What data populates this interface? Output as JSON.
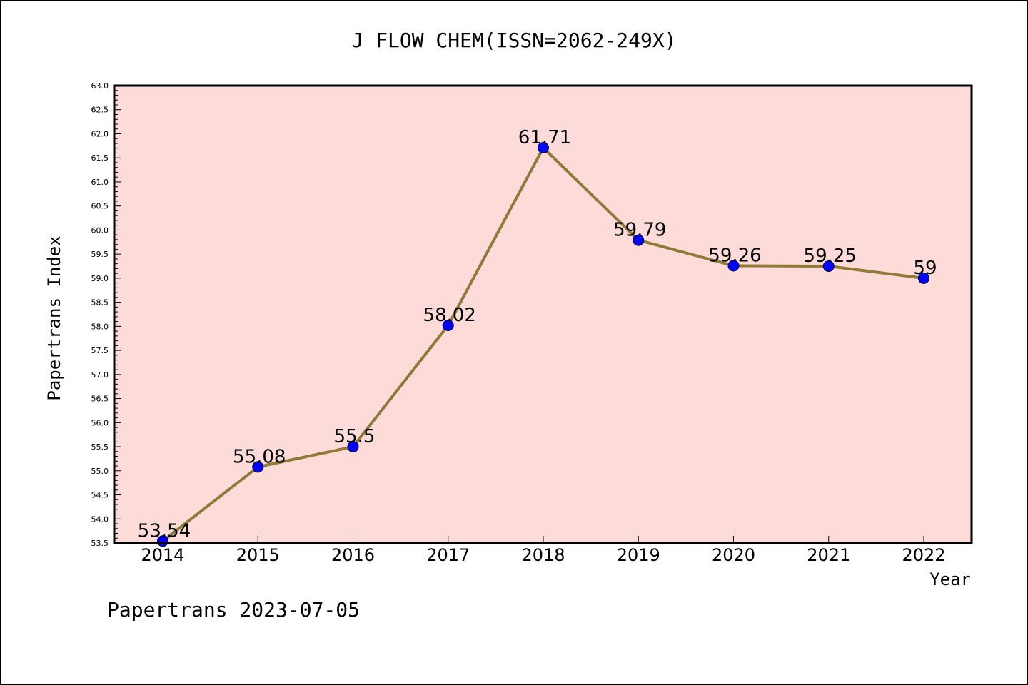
{
  "chart_data": {
    "type": "line",
    "title": "J FLOW CHEM(ISSN=2062-249X)",
    "xlabel": "Year",
    "ylabel": "Papertrans Index",
    "categories": [
      "2014",
      "2015",
      "2016",
      "2017",
      "2018",
      "2019",
      "2020",
      "2021",
      "2022"
    ],
    "values": [
      53.54,
      55.08,
      55.5,
      58.02,
      61.71,
      59.79,
      59.26,
      59.25,
      59
    ],
    "data_labels": [
      "53.54",
      "55.08",
      "55.5",
      "58.02",
      "61.71",
      "59.79",
      "59.26",
      "59.25",
      "59"
    ],
    "ylim": [
      53.5,
      63.0
    ],
    "yticks": [
      "53.5",
      "54.0",
      "54.5",
      "55.0",
      "55.5",
      "56.0",
      "56.5",
      "57.0",
      "57.5",
      "58.0",
      "58.5",
      "59.0",
      "59.5",
      "60.0",
      "60.5",
      "61.0",
      "61.5",
      "62.0",
      "62.5",
      "63.0"
    ],
    "grid": false,
    "colors": {
      "line": "#8f7a3a",
      "marker": "#0000ff",
      "plot_background": "#fddbd8"
    }
  },
  "footer": "Papertrans 2023-07-05"
}
